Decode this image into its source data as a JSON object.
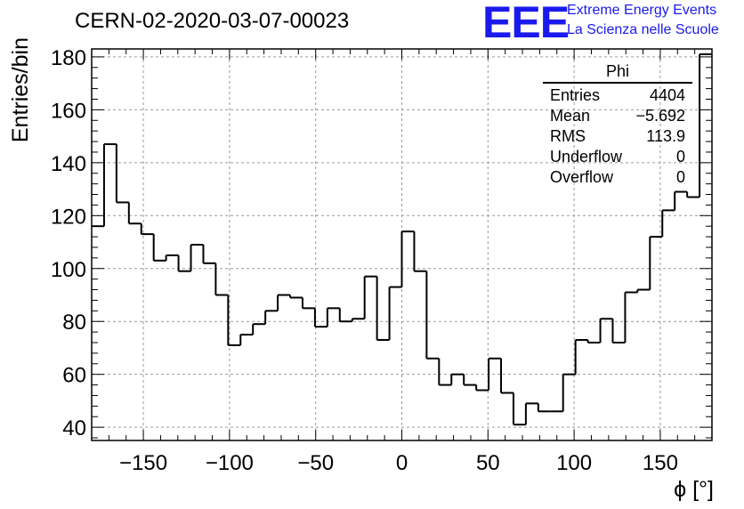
{
  "chart_data": {
    "type": "histogram",
    "title": "CERN-02-2020-03-07-00023",
    "xlabel": "ϕ [°]",
    "ylabel": "Entries/bin",
    "xlim": [
      -180,
      180
    ],
    "ylim": [
      35,
      183
    ],
    "grid": true,
    "x_ticks": [
      -150,
      -100,
      -50,
      0,
      50,
      100,
      150
    ],
    "y_ticks": [
      40,
      60,
      80,
      100,
      120,
      140,
      160,
      180
    ],
    "bin_width": 7.2,
    "bins": [
      {
        "x": -180,
        "value": 116
      },
      {
        "x": -172.8,
        "value": 147
      },
      {
        "x": -165.6,
        "value": 125
      },
      {
        "x": -158.4,
        "value": 117
      },
      {
        "x": -151.2,
        "value": 113
      },
      {
        "x": -144,
        "value": 103
      },
      {
        "x": -136.8,
        "value": 105
      },
      {
        "x": -129.6,
        "value": 99
      },
      {
        "x": -122.4,
        "value": 109
      },
      {
        "x": -115.2,
        "value": 102
      },
      {
        "x": -108,
        "value": 90
      },
      {
        "x": -100.8,
        "value": 71
      },
      {
        "x": -93.6,
        "value": 75
      },
      {
        "x": -86.4,
        "value": 79
      },
      {
        "x": -79.2,
        "value": 84
      },
      {
        "x": -72,
        "value": 90
      },
      {
        "x": -64.8,
        "value": 89
      },
      {
        "x": -57.6,
        "value": 85
      },
      {
        "x": -50.4,
        "value": 78
      },
      {
        "x": -43.2,
        "value": 85
      },
      {
        "x": -36,
        "value": 80
      },
      {
        "x": -28.8,
        "value": 81
      },
      {
        "x": -21.6,
        "value": 97
      },
      {
        "x": -14.4,
        "value": 73
      },
      {
        "x": -7.2,
        "value": 93
      },
      {
        "x": 0,
        "value": 114
      },
      {
        "x": 7.2,
        "value": 99
      },
      {
        "x": 14.4,
        "value": 66
      },
      {
        "x": 21.6,
        "value": 56
      },
      {
        "x": 28.8,
        "value": 60
      },
      {
        "x": 36,
        "value": 56
      },
      {
        "x": 43.2,
        "value": 54
      },
      {
        "x": 50.4,
        "value": 66
      },
      {
        "x": 57.6,
        "value": 53
      },
      {
        "x": 64.8,
        "value": 41
      },
      {
        "x": 72,
        "value": 49
      },
      {
        "x": 79.2,
        "value": 46
      },
      {
        "x": 86.4,
        "value": 46
      },
      {
        "x": 93.6,
        "value": 60
      },
      {
        "x": 100.8,
        "value": 73
      },
      {
        "x": 108,
        "value": 72
      },
      {
        "x": 115.2,
        "value": 81
      },
      {
        "x": 122.4,
        "value": 72
      },
      {
        "x": 129.6,
        "value": 91
      },
      {
        "x": 136.8,
        "value": 92
      },
      {
        "x": 144,
        "value": 112
      },
      {
        "x": 151.2,
        "value": 122
      },
      {
        "x": 158.4,
        "value": 129
      },
      {
        "x": 165.6,
        "value": 127
      },
      {
        "x": 172.8,
        "value": 181
      }
    ],
    "stats": {
      "title": "Phi",
      "rows": [
        {
          "label": "Entries",
          "value": "4404"
        },
        {
          "label": "Mean",
          "value": "−5.692"
        },
        {
          "label": "RMS",
          "value": "113.9"
        },
        {
          "label": "Underflow",
          "value": "0"
        },
        {
          "label": "Overflow",
          "value": "0"
        }
      ]
    },
    "logo": {
      "mark": "EEE",
      "line1": "Extreme Energy Events",
      "line2": "La Scienza nelle Scuole",
      "color": "#1a1aee"
    }
  }
}
